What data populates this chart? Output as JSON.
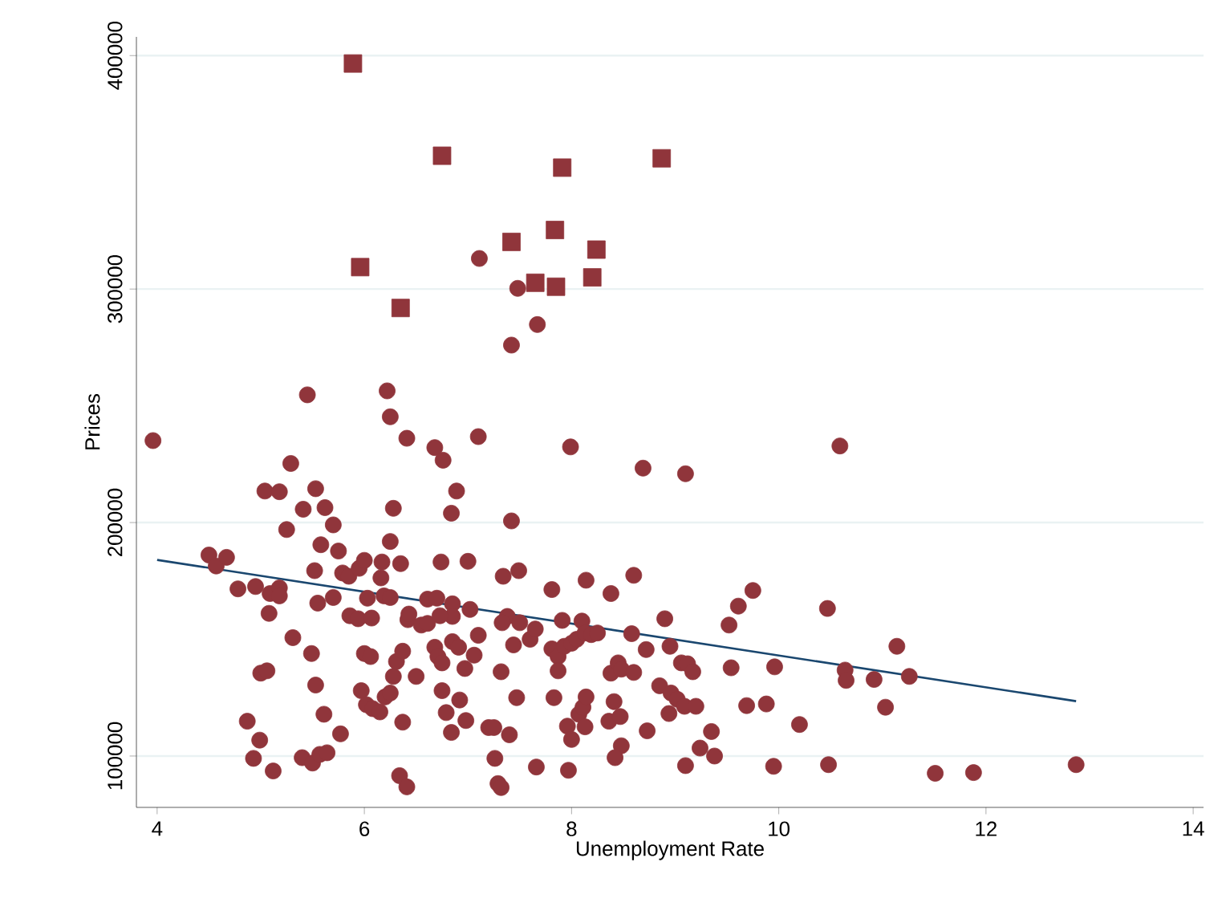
{
  "chart_data": {
    "type": "scatter",
    "xlabel": "Unemployment Rate",
    "ylabel": "Prices",
    "xlim": [
      3.8,
      14.1
    ],
    "ylim": [
      78000,
      408000
    ],
    "xticks": [
      4,
      6,
      8,
      10,
      12,
      14
    ],
    "yticks": [
      100000,
      200000,
      300000,
      400000
    ],
    "grid": "y",
    "series": [
      {
        "marker": "circle",
        "color": "#90353b",
        "x": [
          3.96,
          4.5,
          4.57,
          4.67,
          4.78,
          4.95,
          5.04,
          5.18,
          5.09,
          5.18,
          5.18,
          5.08,
          5.25,
          5.29,
          5.45,
          5.41,
          5.53,
          5.62,
          5.7,
          5.58,
          5.75,
          5.52,
          5.79,
          5.85,
          5.95,
          6.0,
          5.55,
          5.7,
          5.86,
          5.94,
          6.07,
          6.03,
          6.16,
          6.17,
          6.25,
          6.28,
          6.22,
          6.25,
          6.41,
          6.19,
          6.25,
          6.35,
          5.31,
          5.49,
          5.53,
          5.61,
          5.77,
          4.87,
          4.99,
          4.93,
          5.12,
          5.0,
          5.06,
          5.4,
          5.5,
          5.57,
          5.64,
          5.97,
          6.02,
          6.0,
          6.06,
          6.08,
          6.15,
          6.2,
          6.25,
          6.28,
          6.31,
          6.37,
          6.37,
          6.34,
          6.41,
          6.42,
          6.43,
          6.5,
          6.55,
          6.61,
          6.61,
          6.7,
          6.68,
          6.76,
          6.89,
          6.84,
          6.74,
          6.85,
          6.85,
          6.73,
          7.0,
          7.02,
          7.1,
          7.11,
          6.68,
          6.71,
          6.75,
          6.85,
          6.91,
          7.06,
          7.1,
          6.97,
          6.75,
          6.79,
          6.84,
          6.92,
          6.98,
          7.2,
          7.25,
          7.26,
          7.29,
          7.32,
          7.4,
          7.32,
          7.34,
          7.38,
          7.33,
          7.42,
          7.44,
          7.42,
          7.48,
          7.67,
          7.47,
          7.49,
          7.5,
          7.6,
          7.65,
          7.66,
          7.81,
          7.81,
          7.87,
          7.83,
          7.87,
          7.91,
          7.99,
          7.93,
          8.0,
          8.05,
          8.1,
          8.14,
          8.13,
          8.19,
          8.25,
          7.96,
          8.0,
          7.97,
          8.07,
          8.11,
          8.14,
          8.13,
          8.38,
          8.38,
          8.45,
          8.48,
          8.58,
          8.6,
          8.6,
          8.41,
          8.36,
          8.47,
          8.48,
          8.42,
          8.69,
          8.72,
          8.73,
          8.9,
          8.95,
          8.85,
          8.96,
          9.06,
          9.1,
          9.12,
          9.17,
          9.02,
          9.09,
          8.94,
          9.2,
          9.1,
          9.24,
          9.35,
          9.38,
          9.52,
          9.61,
          9.75,
          9.54,
          9.69,
          9.88,
          9.96,
          9.95,
          10.2,
          10.47,
          10.48,
          10.59,
          10.64,
          10.65,
          10.92,
          11.03,
          11.14,
          11.26,
          11.51,
          11.88,
          12.87
        ],
        "values": [
          235100,
          186100,
          181400,
          185100,
          171600,
          172600,
          213500,
          213200,
          169600,
          172000,
          168600,
          161100,
          197000,
          225300,
          254700,
          205700,
          214500,
          206400,
          199000,
          190500,
          187800,
          179400,
          178400,
          177000,
          180400,
          183800,
          165500,
          167900,
          160100,
          158800,
          159100,
          167600,
          176300,
          183100,
          191900,
          206100,
          256400,
          245300,
          236100,
          168600,
          167900,
          182400,
          150700,
          143900,
          130400,
          117900,
          109500,
          114900,
          106800,
          99000,
          93600,
          135500,
          136500,
          99300,
          97000,
          100700,
          101400,
          128000,
          122000,
          143900,
          142600,
          120300,
          118900,
          125300,
          127000,
          134100,
          140500,
          144900,
          114500,
          91600,
          86800,
          158400,
          160800,
          134100,
          156100,
          156800,
          167200,
          167600,
          232100,
          226700,
          213500,
          204000,
          183100,
          165200,
          159800,
          160100,
          183400,
          162800,
          236800,
          313100,
          146600,
          142600,
          139900,
          149000,
          146600,
          143200,
          151700,
          137500,
          128000,
          118600,
          110100,
          124000,
          115200,
          112200,
          112200,
          99000,
          88200,
          86500,
          109100,
          136100,
          177000,
          159800,
          157100,
          200700,
          147600,
          276000,
          300300,
          284800,
          125000,
          179400,
          157100,
          150000,
          154400,
          95300,
          171300,
          145900,
          142600,
          125000,
          136500,
          158100,
          232400,
          147000,
          148300,
          150000,
          157800,
          175300,
          152700,
          152000,
          152700,
          112800,
          107100,
          93900,
          117900,
          120900,
          125300,
          112500,
          169600,
          135500,
          139900,
          137200,
          152400,
          177400,
          135800,
          123300,
          114900,
          116900,
          104400,
          99300,
          223300,
          145600,
          110800,
          158800,
          147000,
          130100,
          127000,
          139900,
          220900,
          139500,
          136100,
          124300,
          121300,
          118200,
          121300,
          95900,
          103400,
          110500,
          100000,
          156100,
          164200,
          170900,
          137800,
          121600,
          122300,
          138200,
          95600,
          113500,
          163200,
          96300,
          232800,
          136800,
          132400,
          132800,
          120900,
          147000,
          134100,
          92600,
          92900,
          96300
        ]
      },
      {
        "marker": "square",
        "color": "#90353b",
        "x": [
          5.89,
          6.75,
          7.91,
          8.87,
          7.84,
          7.42,
          8.24,
          5.96,
          7.65,
          7.85,
          8.2,
          6.35
        ],
        "values": [
          396600,
          357100,
          352000,
          356000,
          325300,
          320200,
          316900,
          309400,
          302700,
          301000,
          305000,
          291900
        ]
      },
      {
        "type": "line",
        "marker": "none",
        "line_style": "solid",
        "color": "#1a476f",
        "x": [
          4.0,
          12.87
        ],
        "values": [
          184000,
          123500
        ]
      }
    ]
  }
}
